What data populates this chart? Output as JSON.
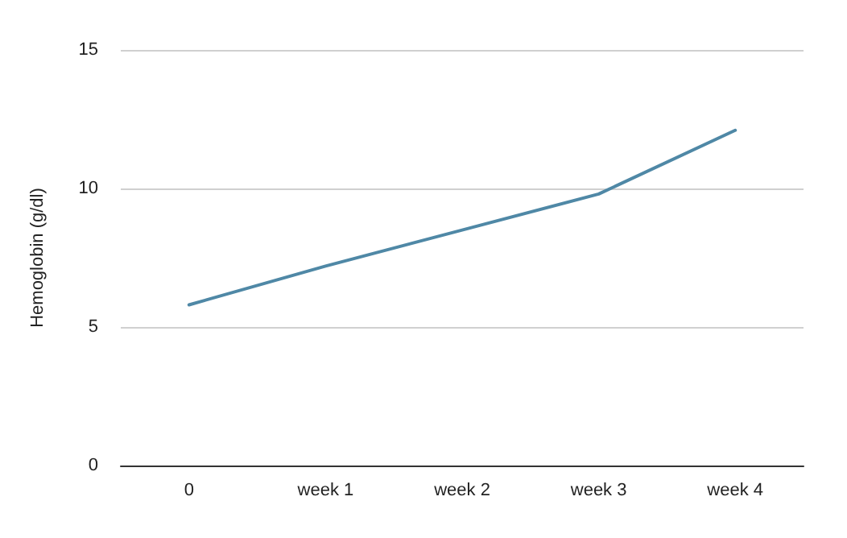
{
  "chart_data": {
    "type": "line",
    "ylabel": "Hemoglobin (g/dl)",
    "categories": [
      "0",
      "week 1",
      "week 2",
      "week 3",
      "week 4"
    ],
    "series": [
      {
        "color": "#4f88a6",
        "values": [
          5.8,
          7.2,
          8.5,
          9.8,
          12.1
        ]
      }
    ],
    "ylim": [
      0,
      15
    ],
    "yticks": [
      0,
      5,
      10,
      15
    ],
    "grid": "y",
    "marker": "none",
    "line_style": "solid"
  }
}
